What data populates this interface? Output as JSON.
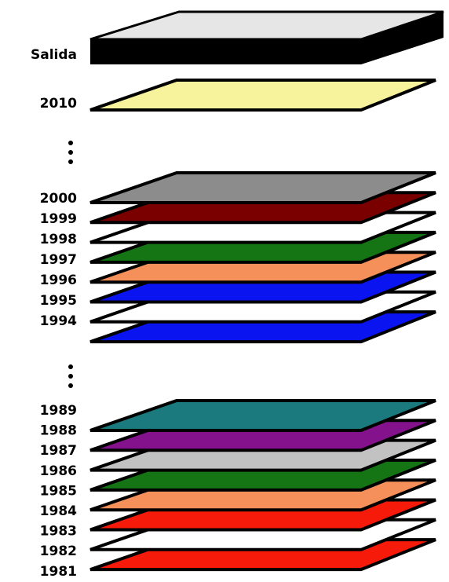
{
  "output": {
    "label": "Salida",
    "color": "#e6e6e6"
  },
  "latest": {
    "label": "2010",
    "color": "#f7f29c"
  },
  "groups": [
    {
      "labels": [
        "2000",
        "1999",
        "1998",
        "1997",
        "1996",
        "1995",
        "1994"
      ],
      "colors": [
        "#8c8c8c",
        "#7a0000",
        "#ffffff",
        "#157515",
        "#f5905a",
        "#0a14f0",
        "#ffffff",
        "#0a14f0"
      ]
    },
    {
      "labels": [
        "1989",
        "1988",
        "1987",
        "1986",
        "1985",
        "1984",
        "1983",
        "1982",
        "1981"
      ],
      "colors": [
        "#1a7a7d",
        "#84128c",
        "#c2c2c2",
        "#157515",
        "#f5905a",
        "#f51a0a",
        "#ffffff",
        "#f51a0a"
      ]
    }
  ]
}
